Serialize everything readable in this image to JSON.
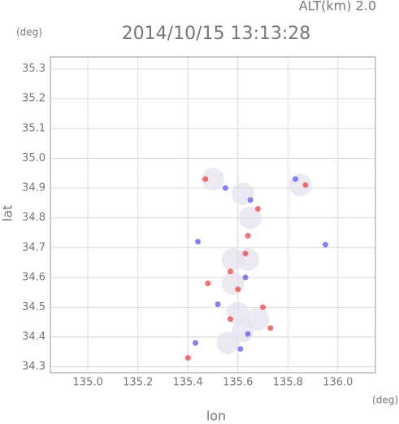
{
  "chart_data": {
    "type": "scatter",
    "title": "2014/10/15 13:13:28",
    "annotation": "ALT(km) 2.0",
    "y_unit": "(deg)",
    "x_unit": "(deg)",
    "x_label": "lon",
    "y_label": "lat",
    "xlim": [
      134.85,
      136.15
    ],
    "ylim": [
      34.28,
      35.34
    ],
    "xticks": [
      {
        "value": 135,
        "label": "135.0"
      },
      135.2,
      135.4,
      135.6,
      135.8,
      {
        "value": 136,
        "label": "136.0"
      }
    ],
    "yticks": [
      34.3,
      34.4,
      34.5,
      34.6,
      34.7,
      34.8,
      34.9,
      {
        "value": 35,
        "label": "35.0"
      },
      35.1,
      35.2,
      35.3
    ],
    "grid": true,
    "series": [
      {
        "color": "#e6e0ee",
        "x": [
          135.5,
          135.62,
          135.65,
          135.58,
          135.64,
          135.58,
          135.6,
          135.68,
          135.62,
          135.56,
          135.85
        ],
        "values": [
          34.93,
          34.88,
          34.8,
          34.66,
          34.66,
          34.58,
          34.48,
          34.46,
          34.42,
          34.38,
          34.91
        ]
      },
      {
        "color": "#e85a5a",
        "x": [
          135.47,
          135.87,
          135.64,
          135.63,
          135.57,
          135.6,
          135.7,
          135.73,
          135.4,
          135.57,
          135.68,
          135.48
        ],
        "values": [
          34.93,
          34.91,
          34.74,
          34.68,
          34.62,
          34.56,
          34.5,
          34.43,
          34.33,
          34.46,
          34.83,
          34.58
        ]
      },
      {
        "color": "#6f6fe6",
        "x": [
          135.55,
          135.44,
          135.95,
          135.63,
          135.52,
          135.64,
          135.65,
          135.43,
          135.61,
          135.83
        ],
        "values": [
          34.9,
          34.72,
          34.71,
          34.6,
          34.51,
          34.41,
          34.86,
          34.38,
          34.36,
          34.93
        ]
      }
    ]
  }
}
